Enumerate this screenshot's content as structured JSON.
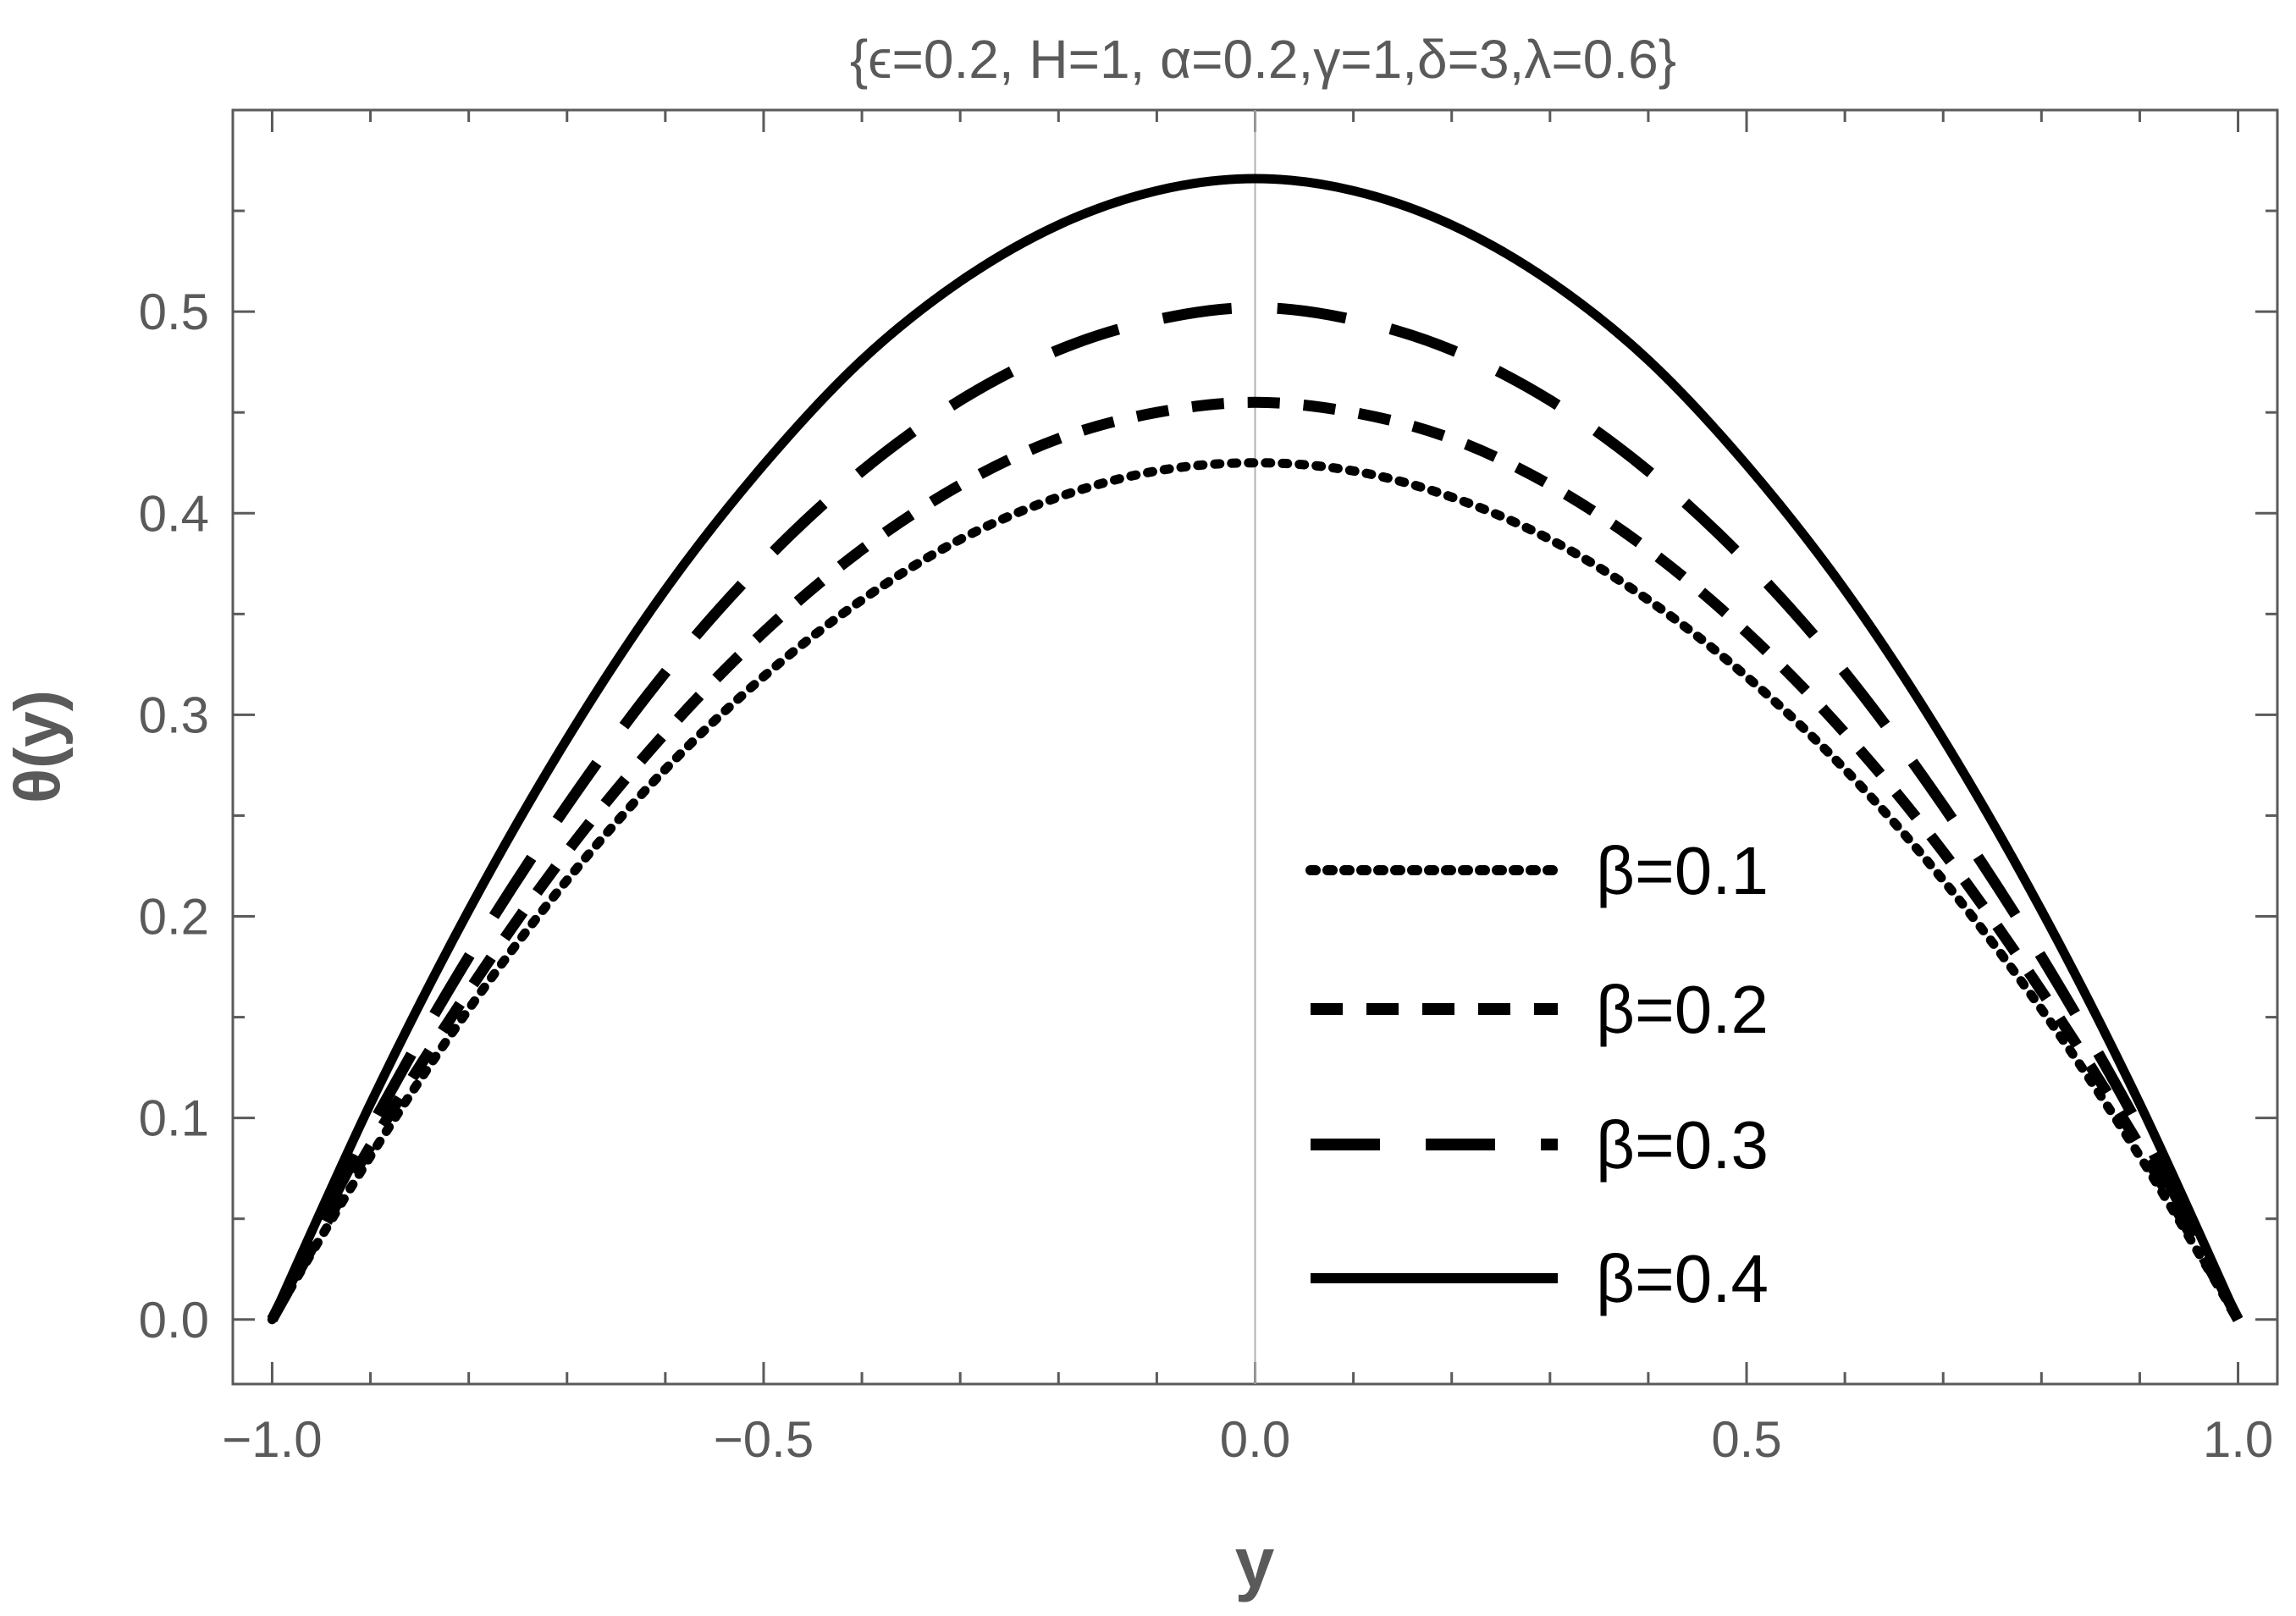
{
  "chart_data": {
    "type": "line",
    "title": "{ϵ=0.2, H=1, α=0.2,γ=1,δ=3,λ=0.6}",
    "xlabel": "y",
    "ylabel": "θ(y)",
    "xlim": [
      -1.04,
      1.04
    ],
    "ylim": [
      -0.032,
      0.6
    ],
    "x_ticks": [
      -1.0,
      -0.5,
      0.0,
      0.5,
      1.0
    ],
    "x_tick_labels": [
      "−1.0",
      "−0.5",
      "0.0",
      "0.5",
      "1.0"
    ],
    "y_ticks": [
      0.0,
      0.1,
      0.2,
      0.3,
      0.4,
      0.5
    ],
    "y_tick_labels": [
      "0.0",
      "0.1",
      "0.2",
      "0.3",
      "0.4",
      "0.5"
    ],
    "legend_position": "lower-right",
    "x": [
      -1.0,
      -0.9,
      -0.8,
      -0.7,
      -0.6,
      -0.5,
      -0.4,
      -0.3,
      -0.2,
      -0.1,
      0.0,
      0.1,
      0.2,
      0.3,
      0.4,
      0.5,
      0.6,
      0.7,
      0.8,
      0.9,
      1.0
    ],
    "series": [
      {
        "name": "β=0.1",
        "style": "dotted",
        "values": [
          0.0,
          0.081,
          0.154,
          0.218,
          0.273,
          0.319,
          0.357,
          0.387,
          0.408,
          0.421,
          0.425,
          0.421,
          0.408,
          0.387,
          0.357,
          0.319,
          0.273,
          0.218,
          0.154,
          0.081,
          0.0
        ]
      },
      {
        "name": "β=0.2",
        "style": "dashed",
        "values": [
          0.0,
          0.086,
          0.163,
          0.232,
          0.291,
          0.341,
          0.382,
          0.414,
          0.437,
          0.45,
          0.455,
          0.45,
          0.437,
          0.414,
          0.382,
          0.341,
          0.291,
          0.232,
          0.163,
          0.086,
          0.0
        ]
      },
      {
        "name": "β=0.3",
        "style": "long-dashed",
        "values": [
          0.0,
          0.095,
          0.18,
          0.255,
          0.321,
          0.376,
          0.421,
          0.456,
          0.481,
          0.496,
          0.502,
          0.496,
          0.481,
          0.456,
          0.421,
          0.376,
          0.321,
          0.255,
          0.18,
          0.095,
          0.0
        ]
      },
      {
        "name": "β=0.4",
        "style": "solid",
        "values": [
          0.0,
          0.107,
          0.203,
          0.288,
          0.362,
          0.424,
          0.476,
          0.515,
          0.543,
          0.56,
          0.566,
          0.56,
          0.543,
          0.515,
          0.476,
          0.424,
          0.362,
          0.288,
          0.203,
          0.107,
          0.0
        ]
      }
    ]
  }
}
